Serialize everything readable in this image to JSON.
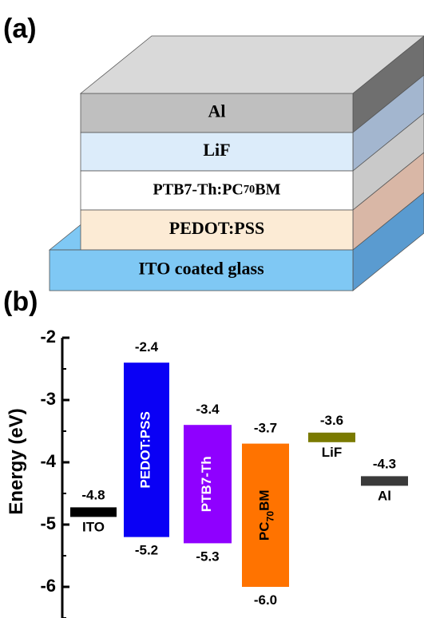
{
  "panel_labels": [
    "(a)",
    "(b)"
  ],
  "device_stack": {
    "layers": [
      {
        "name": "Al",
        "color": "#bfbfbf",
        "side_color": "#6f6f6f"
      },
      {
        "name": "LiF",
        "color": "#dcecfa",
        "side_color": "#a3b6cf"
      },
      {
        "name": "PTB7-Th:PC70BM",
        "color": "#ffffff",
        "side_color": "#c9c9c9"
      },
      {
        "name": "PEDOT:PSS",
        "color": "#fcebd5",
        "side_color": "#d9b7a6"
      },
      {
        "name": "ITO coated glass",
        "color": "#7fc8f4",
        "side_color": "#5a9bd0"
      }
    ]
  },
  "chart_data": {
    "type": "energy_level",
    "ylabel": "Energy (eV)",
    "ylim": [
      -6.5,
      -2
    ],
    "yticks": [
      -2,
      -3,
      -4,
      -5,
      -6
    ],
    "yminorticks": [
      -2.5,
      -3.5,
      -4.5,
      -5.5,
      -6.5
    ],
    "levels": [
      {
        "name": "ITO",
        "color": "#000000",
        "text_color": "#000000",
        "values": [
          -4.8
        ]
      },
      {
        "name": "PEDOT:PSS",
        "color": "#0a00f5",
        "text_color": "#ffffff",
        "values": [
          -2.4,
          -5.2
        ]
      },
      {
        "name": "PTB7-Th",
        "color": "#8f00ff",
        "text_color": "#ffffff",
        "values": [
          -3.4,
          -5.3
        ]
      },
      {
        "name": "PC70BM",
        "color": "#ff7300",
        "text_color": "#000000",
        "values": [
          -3.7,
          -6.0
        ],
        "value_labels": [
          "-3.7",
          "-6.0"
        ]
      },
      {
        "name": "LiF",
        "color": "#7a7a00",
        "text_color": "#000000",
        "values": [
          -3.6
        ]
      },
      {
        "name": "Al",
        "color": "#3a3a3a",
        "text_color": "#000000",
        "values": [
          -4.3
        ]
      }
    ]
  }
}
